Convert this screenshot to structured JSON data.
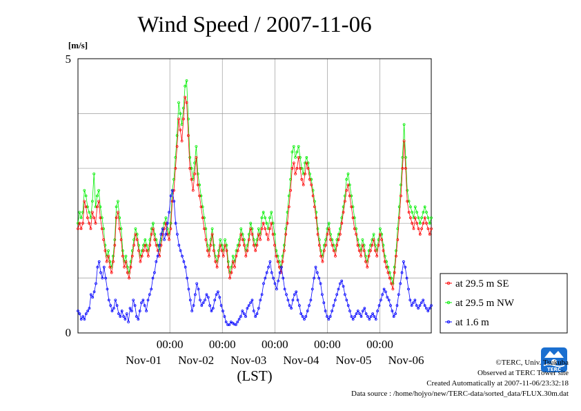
{
  "chart_data": {
    "type": "line",
    "title": "Wind Speed / 2007-11-06",
    "ylabel": "[m/s]",
    "xlabel": "(LST)",
    "ylim": [
      0,
      5
    ],
    "y_ticks": [
      "0",
      "5"
    ],
    "x_time_labels": [
      "00:00",
      "00:00",
      "00:00",
      "00:00",
      "00:00"
    ],
    "x_date_labels": [
      "Nov-01",
      "Nov-02",
      "Nov-03",
      "Nov-04",
      "Nov-05",
      "Nov-06"
    ],
    "x_hours_from_nov01_00": [
      0,
      24,
      48,
      72,
      96,
      120
    ],
    "grid": true,
    "legend_position": "right",
    "series": [
      {
        "name": "at 29.5 m SE",
        "color": "#ff0000",
        "values": [
          1.9,
          2.0,
          1.9,
          2.0,
          2.4,
          2.3,
          2.1,
          2.0,
          1.9,
          2.2,
          2.1,
          2.0,
          2.3,
          2.4,
          2.1,
          1.9,
          1.7,
          1.5,
          1.3,
          1.4,
          1.2,
          1.1,
          1.3,
          1.6,
          2.1,
          2.2,
          1.9,
          1.7,
          1.4,
          1.2,
          1.3,
          1.1,
          1.0,
          1.2,
          1.4,
          1.6,
          1.8,
          1.7,
          1.5,
          1.3,
          1.4,
          1.5,
          1.6,
          1.5,
          1.4,
          1.6,
          1.8,
          1.9,
          1.7,
          1.6,
          1.5,
          1.4,
          1.6,
          1.8,
          1.9,
          2.0,
          1.8,
          1.7,
          1.9,
          2.4,
          2.6,
          3.0,
          3.4,
          3.9,
          3.7,
          3.5,
          3.9,
          4.3,
          4.2,
          3.6,
          3.0,
          2.8,
          2.6,
          2.9,
          3.2,
          2.7,
          2.5,
          2.3,
          2.1,
          1.9,
          1.7,
          1.5,
          1.4,
          1.6,
          1.8,
          1.5,
          1.3,
          1.2,
          1.4,
          1.6,
          1.5,
          1.4,
          1.6,
          1.5,
          1.2,
          1.0,
          1.1,
          1.3,
          1.2,
          1.4,
          1.5,
          1.6,
          1.8,
          1.7,
          1.6,
          1.4,
          1.5,
          1.7,
          1.9,
          1.8,
          1.6,
          1.5,
          1.6,
          1.8,
          1.7,
          1.9,
          2.0,
          1.9,
          1.8,
          1.7,
          1.9,
          2.0,
          1.8,
          1.6,
          1.4,
          1.3,
          1.2,
          1.1,
          1.3,
          1.5,
          1.8,
          2.0,
          2.3,
          2.6,
          3.0,
          3.1,
          2.9,
          3.0,
          3.2,
          3.0,
          2.8,
          2.7,
          2.9,
          3.1,
          3.0,
          2.8,
          2.7,
          2.5,
          2.3,
          2.1,
          1.8,
          1.6,
          1.4,
          1.3,
          1.5,
          1.6,
          1.8,
          1.9,
          1.7,
          1.6,
          1.5,
          1.4,
          1.6,
          1.7,
          1.8,
          2.0,
          2.2,
          2.4,
          2.6,
          2.7,
          2.5,
          2.3,
          2.1,
          1.9,
          1.8,
          1.6,
          1.5,
          1.4,
          1.6,
          1.5,
          1.3,
          1.2,
          1.4,
          1.5,
          1.6,
          1.7,
          1.5,
          1.4,
          1.6,
          1.8,
          1.7,
          1.5,
          1.3,
          1.2,
          1.1,
          1.0,
          0.9,
          0.8,
          1.1,
          1.4,
          1.7,
          2.1,
          2.5,
          3.0,
          3.5,
          3.0,
          2.4,
          2.2,
          2.1,
          2.0,
          1.9,
          2.1,
          2.0,
          1.9,
          1.8,
          1.9,
          2.0,
          2.1,
          2.0,
          1.9,
          1.8,
          1.9
        ]
      },
      {
        "name": "at 29.5 m NW",
        "color": "#00ee00",
        "values": [
          2.0,
          2.2,
          2.1,
          2.2,
          2.6,
          2.5,
          2.3,
          2.2,
          2.1,
          2.4,
          2.9,
          2.3,
          2.5,
          2.6,
          2.3,
          2.1,
          1.9,
          1.6,
          1.4,
          1.5,
          1.3,
          1.2,
          1.4,
          1.7,
          2.3,
          2.4,
          2.1,
          1.9,
          1.5,
          1.3,
          1.4,
          1.2,
          1.1,
          1.3,
          1.5,
          1.7,
          1.9,
          1.8,
          1.6,
          1.4,
          1.5,
          1.6,
          1.7,
          1.6,
          1.5,
          1.7,
          1.9,
          2.0,
          1.8,
          1.7,
          1.6,
          1.5,
          1.7,
          1.9,
          2.0,
          2.1,
          1.9,
          1.8,
          2.0,
          2.6,
          2.8,
          3.2,
          3.6,
          4.2,
          4.0,
          3.8,
          4.1,
          4.5,
          4.6,
          3.9,
          3.2,
          3.0,
          2.8,
          3.1,
          3.4,
          2.9,
          2.7,
          2.5,
          2.3,
          2.1,
          1.9,
          1.6,
          1.5,
          1.7,
          1.9,
          1.6,
          1.4,
          1.3,
          1.5,
          1.7,
          1.6,
          1.5,
          1.7,
          1.6,
          1.3,
          1.1,
          1.2,
          1.4,
          1.3,
          1.5,
          1.6,
          1.7,
          1.9,
          1.8,
          1.7,
          1.5,
          1.6,
          1.8,
          2.0,
          1.9,
          1.7,
          1.6,
          1.7,
          1.9,
          1.8,
          2.1,
          2.2,
          2.1,
          2.0,
          1.9,
          2.1,
          2.2,
          2.0,
          1.8,
          1.5,
          1.4,
          1.3,
          1.2,
          1.4,
          1.6,
          1.9,
          2.2,
          2.5,
          2.8,
          3.3,
          3.4,
          3.2,
          3.3,
          3.4,
          3.2,
          3.0,
          2.9,
          3.1,
          3.2,
          3.1,
          2.9,
          2.8,
          2.6,
          2.4,
          2.2,
          1.9,
          1.7,
          1.5,
          1.4,
          1.6,
          1.7,
          1.9,
          2.0,
          1.8,
          1.7,
          1.6,
          1.5,
          1.7,
          1.8,
          1.9,
          2.1,
          2.3,
          2.5,
          2.8,
          2.9,
          2.7,
          2.5,
          2.3,
          2.1,
          1.9,
          1.7,
          1.6,
          1.5,
          1.7,
          1.6,
          1.4,
          1.3,
          1.5,
          1.6,
          1.7,
          1.8,
          1.6,
          1.5,
          1.7,
          1.9,
          1.8,
          1.6,
          1.4,
          1.3,
          1.2,
          1.1,
          1.0,
          0.9,
          1.2,
          1.5,
          1.9,
          2.3,
          2.7,
          3.2,
          3.8,
          3.2,
          2.6,
          2.4,
          2.3,
          2.2,
          2.1,
          2.3,
          2.2,
          2.1,
          2.0,
          2.1,
          2.2,
          2.3,
          2.2,
          2.1,
          2.0,
          2.1
        ]
      },
      {
        "name": "at 1.6 m",
        "color": "#0000ff",
        "values": [
          0.4,
          0.35,
          0.25,
          0.3,
          0.25,
          0.35,
          0.4,
          0.45,
          0.7,
          0.65,
          0.75,
          0.9,
          1.2,
          1.3,
          1.1,
          1.0,
          1.2,
          1.0,
          0.8,
          0.6,
          0.5,
          0.4,
          0.45,
          0.6,
          0.5,
          0.35,
          0.3,
          0.4,
          0.3,
          0.25,
          0.35,
          0.2,
          0.45,
          0.4,
          0.6,
          0.5,
          0.3,
          0.25,
          0.4,
          0.55,
          0.6,
          0.5,
          0.4,
          0.6,
          0.7,
          0.8,
          1.0,
          1.1,
          1.3,
          1.4,
          1.6,
          1.8,
          1.9,
          1.7,
          1.8,
          2.0,
          2.2,
          2.5,
          2.6,
          2.4,
          2.0,
          1.8,
          1.6,
          1.5,
          1.4,
          1.3,
          1.2,
          1.0,
          0.8,
          0.6,
          0.4,
          0.5,
          0.7,
          0.9,
          0.8,
          0.6,
          0.5,
          0.55,
          0.6,
          0.7,
          0.65,
          0.5,
          0.4,
          0.45,
          0.6,
          0.7,
          0.75,
          0.65,
          0.5,
          0.4,
          0.3,
          0.2,
          0.15,
          0.15,
          0.2,
          0.18,
          0.16,
          0.15,
          0.2,
          0.25,
          0.3,
          0.4,
          0.35,
          0.3,
          0.45,
          0.5,
          0.55,
          0.6,
          0.4,
          0.3,
          0.35,
          0.45,
          0.6,
          0.7,
          0.9,
          1.0,
          1.1,
          1.2,
          1.3,
          1.1,
          1.0,
          0.9,
          0.8,
          0.95,
          1.1,
          1.2,
          1.0,
          0.8,
          0.7,
          0.6,
          0.5,
          0.45,
          0.6,
          0.7,
          0.75,
          0.6,
          0.5,
          0.35,
          0.3,
          0.25,
          0.3,
          0.4,
          0.5,
          0.6,
          0.8,
          1.0,
          1.2,
          1.1,
          1.0,
          0.9,
          0.7,
          0.55,
          0.4,
          0.3,
          0.25,
          0.3,
          0.4,
          0.5,
          0.6,
          0.7,
          0.8,
          0.9,
          0.95,
          0.85,
          0.7,
          0.6,
          0.5,
          0.4,
          0.3,
          0.25,
          0.3,
          0.35,
          0.4,
          0.35,
          0.3,
          0.4,
          0.45,
          0.35,
          0.3,
          0.25,
          0.3,
          0.35,
          0.3,
          0.25,
          0.4,
          0.5,
          0.6,
          0.7,
          0.8,
          0.75,
          0.65,
          0.6,
          0.5,
          0.4,
          0.3,
          0.35,
          0.5,
          0.7,
          0.9,
          1.1,
          1.3,
          1.2,
          1.0,
          0.8,
          0.6,
          0.5,
          0.55,
          0.6,
          0.5,
          0.45,
          0.5,
          0.55,
          0.6,
          0.5,
          0.45,
          0.4,
          0.45,
          0.5
        ]
      }
    ]
  },
  "credits": {
    "line1": "©TERC, Univ. Tsukuba",
    "line2": "Observed at TERC Tower site",
    "line3": "Created Automatically at 2007-11-06/23:32:18",
    "line4": "Data source : /home/hojyo/new/TERC-data/sorted_data/FLUX.30m.dat"
  },
  "logo": {
    "text": "TERC",
    "color": "#1a6fd0"
  }
}
